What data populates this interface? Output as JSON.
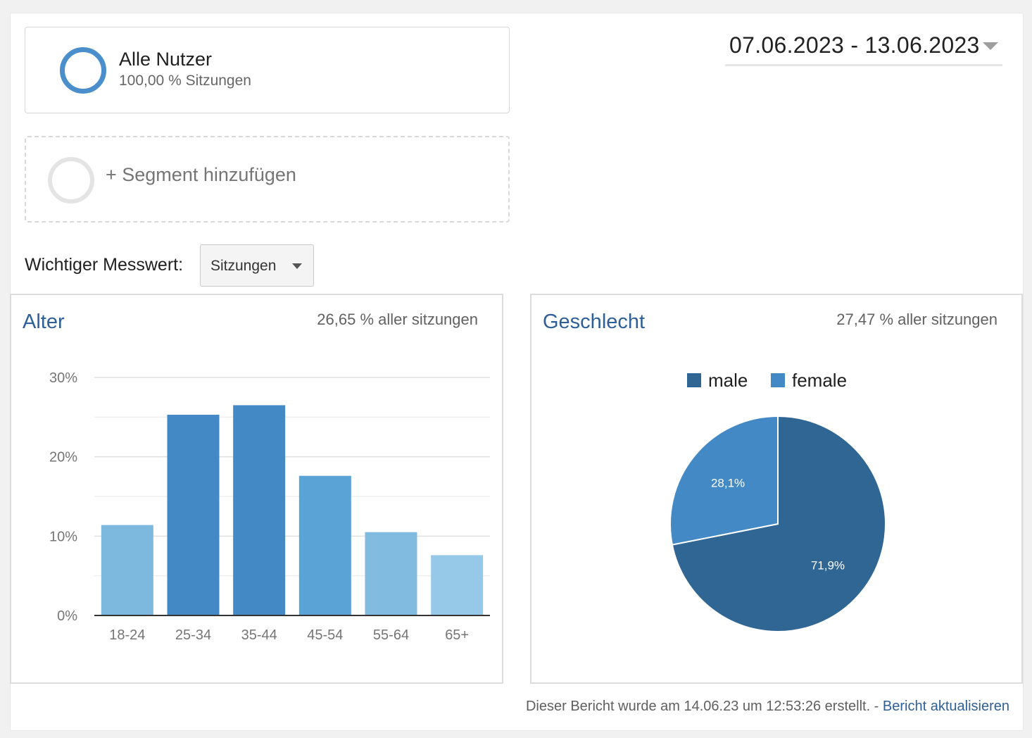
{
  "segments": {
    "active": {
      "title": "Alle Nutzer",
      "subtitle": "100,00 % Sitzungen",
      "ring_color": "#4a8fcb"
    },
    "add_label": "+ Segment hinzufügen"
  },
  "date_range": "07.06.2023 - 13.06.2023",
  "metric": {
    "label": "Wichtiger Messwert:",
    "selected": "Sitzungen"
  },
  "age_card": {
    "title": "Alter",
    "meta": "26,65 % aller sitzungen"
  },
  "gender_card": {
    "title": "Geschlecht",
    "meta": "27,47 % aller sitzungen"
  },
  "chart_data": [
    {
      "type": "bar",
      "categories": [
        "18-24",
        "25-34",
        "35-44",
        "45-54",
        "55-64",
        "65+"
      ],
      "values": [
        11.4,
        25.3,
        26.5,
        17.6,
        10.5,
        7.6
      ],
      "colors": [
        "#7db8de",
        "#4389c6",
        "#4389c6",
        "#5aa3d6",
        "#82bbe0",
        "#96c8e8"
      ],
      "yticks": [
        "0%",
        "10%",
        "20%",
        "30%"
      ],
      "ylim": [
        0,
        30
      ],
      "grid": true
    },
    {
      "type": "pie",
      "labels": [
        "male",
        "female"
      ],
      "values": [
        71.9,
        28.1
      ],
      "value_labels": [
        "71,9%",
        "28,1%"
      ],
      "colors": [
        "#2f6693",
        "#4389c6"
      ],
      "legend": "top"
    }
  ],
  "footer": {
    "text": "Dieser Bericht wurde am 14.06.23 um 12:53:26 erstellt. - ",
    "link": "Bericht aktualisieren"
  }
}
